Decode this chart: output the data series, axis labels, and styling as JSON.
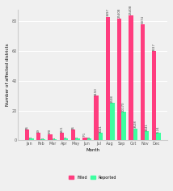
{
  "months": [
    "Jan",
    "Feb",
    "Mar",
    "Apr",
    "May",
    "Jun",
    "Jul",
    "Aug",
    "Sep",
    "Oct",
    "Nov",
    "Dec"
  ],
  "filled": [
    7,
    5,
    4,
    5,
    7,
    2,
    30,
    83,
    82,
    84,
    78,
    60
  ],
  "reported": [
    1,
    0.5,
    0.5,
    1,
    1,
    1,
    5,
    25,
    19,
    8,
    6,
    5
  ],
  "filled_labels": [
    "26",
    "19",
    "8/0",
    "16/1",
    "26",
    "7/1",
    "5150",
    "3497",
    "25408",
    "25408",
    "3074",
    "3337"
  ],
  "reported_labels": [
    "1",
    "1",
    "1",
    "1",
    "1",
    "3",
    "3041",
    "2508",
    "20170",
    "3528",
    "3041",
    "5,24"
  ],
  "filled_color": "#FF3D7F",
  "reported_color": "#3DFFA0",
  "background_color": "#f0f0f0",
  "ylabel": "Number of affected districts",
  "xlabel": "Month",
  "ylim": [
    0,
    88
  ],
  "yticks": [
    0,
    20,
    40,
    60,
    80
  ],
  "bar_width": 0.38,
  "label_fontsize": 2.8,
  "axis_fontsize": 4.0,
  "tick_fontsize": 3.5
}
